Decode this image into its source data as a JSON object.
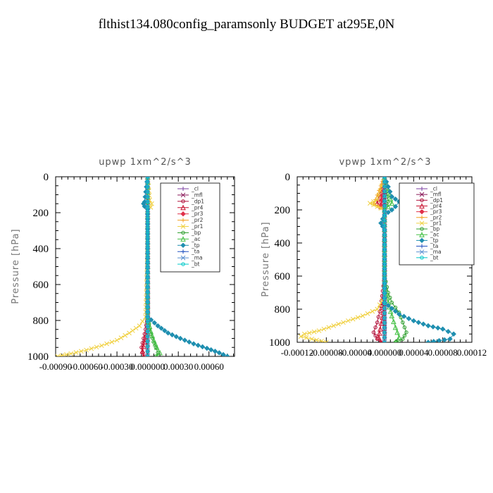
{
  "figure": {
    "title": "flthist134.080config_paramsonly  BUDGET at295E,0N"
  },
  "chart_data": [
    {
      "type": "line",
      "title": "upwp   1xm^2/s^3",
      "xlabel": "",
      "ylabel": "Pressure  [hPa]",
      "xlim": [
        -0.0009,
        0.00085
      ],
      "ylim": [
        1000,
        0
      ],
      "yticks": [
        0,
        200,
        400,
        600,
        800,
        1000
      ],
      "ytick_labels": [
        "0",
        "200",
        "400",
        "600",
        "800",
        "1000"
      ],
      "xticks": [
        -0.0009,
        -0.0006,
        -0.0003,
        0.0,
        0.0003,
        0.0006
      ],
      "xtick_labels": [
        "-0.00090",
        "-0.00060",
        "-0.00030",
        "0.000000",
        "0.00030",
        "0.00060"
      ],
      "legend_position": "top-right",
      "series": [
        {
          "name": "_cl",
          "color": "#7b3fa0",
          "x": [
            0,
            0,
            0,
            0,
            0
          ],
          "y": [
            0,
            250,
            500,
            750,
            1000
          ]
        },
        {
          "name": "_mfl",
          "color": "#8b1a5a",
          "x": [
            0,
            0,
            0,
            0,
            0
          ],
          "y": [
            0,
            250,
            500,
            750,
            1000
          ]
        },
        {
          "name": "_dp1",
          "color": "#b0103a",
          "x": [
            0,
            0,
            0,
            -2e-05,
            -4e-05,
            -6e-05,
            -5e-05,
            -3e-05
          ],
          "y": [
            0,
            500,
            780,
            850,
            900,
            950,
            980,
            1000
          ]
        },
        {
          "name": "_pr4",
          "color": "#c8102e",
          "x": [
            0,
            0,
            0,
            -1e-05,
            -3e-05,
            -5e-05,
            -4e-05
          ],
          "y": [
            0,
            500,
            800,
            860,
            920,
            970,
            1000
          ]
        },
        {
          "name": "_pr3",
          "color": "#e0304a",
          "x": [
            0,
            0,
            0,
            0
          ],
          "y": [
            0,
            500,
            800,
            1000
          ]
        },
        {
          "name": "_pr2",
          "color": "#f4a020",
          "x": [
            0,
            0,
            0,
            0
          ],
          "y": [
            0,
            500,
            800,
            1000
          ]
        },
        {
          "name": "_pr1",
          "color": "#f0d040",
          "x": [
            0,
            2e-05,
            4e-05,
            3e-05,
            0,
            0,
            -2e-05,
            -8e-05,
            -0.00018,
            -0.0003,
            -0.00045,
            -0.0006,
            -0.00075,
            -0.00088
          ],
          "y": [
            0,
            130,
            150,
            170,
            190,
            400,
            780,
            830,
            870,
            910,
            940,
            965,
            985,
            1000
          ]
        },
        {
          "name": "_bp",
          "color": "#2e9e2e",
          "x": [
            0,
            0,
            0,
            2e-05,
            5e-05,
            8e-05,
            0.0001,
            8e-05
          ],
          "y": [
            0,
            500,
            780,
            850,
            900,
            950,
            980,
            1000
          ]
        },
        {
          "name": "_ac",
          "color": "#44c044",
          "x": [
            0,
            0,
            0,
            3e-05,
            6e-05,
            9e-05,
            0.00012,
            9e-05
          ],
          "y": [
            0,
            500,
            780,
            860,
            910,
            950,
            980,
            1000
          ]
        },
        {
          "name": "_tp",
          "color": "#1f8fb0",
          "x": [
            0,
            -3e-05,
            -4e-05,
            -3e-05,
            0,
            0,
            0.0001,
            0.0002,
            0.00032,
            0.00045,
            0.00058,
            0.0007,
            0.00078
          ],
          "y": [
            0,
            140,
            150,
            165,
            180,
            780,
            830,
            870,
            900,
            930,
            955,
            980,
            1000
          ]
        },
        {
          "name": "_ta",
          "color": "#2050c0",
          "x": [
            0,
            0,
            0
          ],
          "y": [
            0,
            500,
            1000
          ]
        },
        {
          "name": "_ma",
          "color": "#5a8fd0",
          "x": [
            0,
            0,
            0
          ],
          "y": [
            0,
            500,
            1000
          ]
        },
        {
          "name": "_bt",
          "color": "#00c8c8",
          "x": [
            0,
            0,
            0
          ],
          "y": [
            0,
            500,
            1000
          ]
        }
      ]
    },
    {
      "type": "line",
      "title": "vpwp   1xm^2/s^3",
      "xlabel": "",
      "ylabel": "Pressure  [hPa]",
      "xlim": [
        -0.00012,
        0.00012
      ],
      "ylim": [
        1000,
        0
      ],
      "yticks": [
        0,
        200,
        400,
        600,
        800,
        1000
      ],
      "ytick_labels": [
        "0",
        "200",
        "400",
        "600",
        "800",
        "1000"
      ],
      "xticks": [
        -0.00012,
        -8e-05,
        -4e-05,
        0.0,
        4e-05,
        8e-05,
        0.00012
      ],
      "xtick_labels": [
        "-0.00012",
        "-0.00008",
        "-0.00004",
        "0.000000",
        "0.00004",
        "0.00008",
        "0.00012"
      ],
      "legend_position": "top-right",
      "series": [
        {
          "name": "_cl",
          "color": "#7b3fa0",
          "x": [
            0,
            0,
            0,
            0,
            0
          ],
          "y": [
            0,
            250,
            500,
            750,
            1000
          ]
        },
        {
          "name": "_mfl",
          "color": "#8b1a5a",
          "x": [
            0,
            0,
            0,
            0,
            0
          ],
          "y": [
            0,
            250,
            500,
            750,
            1000
          ]
        },
        {
          "name": "_dp1",
          "color": "#b0103a",
          "x": [
            0,
            -5e-06,
            0,
            0,
            -5e-06,
            -1e-05,
            -1.5e-05,
            -1e-05,
            -5e-06
          ],
          "y": [
            0,
            150,
            200,
            600,
            780,
            880,
            940,
            980,
            1000
          ]
        },
        {
          "name": "_pr4",
          "color": "#c8102e",
          "x": [
            0,
            -1e-05,
            0,
            0,
            -3e-06,
            -6e-06,
            -8e-06,
            -5e-06
          ],
          "y": [
            0,
            160,
            200,
            700,
            850,
            920,
            970,
            1000
          ]
        },
        {
          "name": "_pr3",
          "color": "#e0304a",
          "x": [
            0,
            -5e-06,
            0,
            0
          ],
          "y": [
            0,
            170,
            200,
            1000
          ]
        },
        {
          "name": "_pr2",
          "color": "#f4a020",
          "x": [
            0,
            -1.5e-05,
            0,
            0
          ],
          "y": [
            0,
            165,
            200,
            1000
          ]
        },
        {
          "name": "_pr1",
          "color": "#f0d040",
          "x": [
            0,
            -1e-05,
            -2e-05,
            -1e-05,
            0,
            0,
            -1e-05,
            -3e-05,
            -5e-05,
            -7e-05,
            -9e-05,
            -0.00011,
            -0.000115,
            -0.0001,
            -8e-05
          ],
          "y": [
            0,
            140,
            160,
            180,
            200,
            720,
            800,
            840,
            870,
            900,
            930,
            950,
            965,
            980,
            1000
          ]
        },
        {
          "name": "_bp",
          "color": "#2e9e2e",
          "x": [
            0,
            5e-06,
            0,
            0,
            5e-06,
            1e-05,
            2e-05,
            2.5e-05,
            3e-05,
            2.5e-05,
            1.5e-05
          ],
          "y": [
            0,
            150,
            200,
            600,
            700,
            760,
            820,
            880,
            940,
            980,
            1000
          ]
        },
        {
          "name": "_ac",
          "color": "#44c044",
          "x": [
            0,
            1e-05,
            0,
            0,
            5e-06,
            1e-05,
            1.5e-05,
            2e-05,
            1.5e-05
          ],
          "y": [
            0,
            160,
            200,
            650,
            760,
            840,
            910,
            970,
            1000
          ]
        },
        {
          "name": "_tp",
          "color": "#1f8fb0",
          "x": [
            0,
            1e-05,
            2e-05,
            1.5e-05,
            1e-05,
            0,
            -5e-06,
            0,
            0,
            2e-05,
            4e-05,
            6e-05,
            8e-05,
            9.5e-05,
            9e-05,
            6e-05
          ],
          "y": [
            0,
            120,
            150,
            180,
            200,
            230,
            280,
            320,
            760,
            830,
            870,
            900,
            920,
            950,
            980,
            1000
          ]
        },
        {
          "name": "_ta",
          "color": "#2050c0",
          "x": [
            0,
            0,
            0
          ],
          "y": [
            0,
            500,
            1000
          ]
        },
        {
          "name": "_ma",
          "color": "#5a8fd0",
          "x": [
            0,
            0,
            0
          ],
          "y": [
            0,
            500,
            1000
          ]
        },
        {
          "name": "_bt",
          "color": "#00c8c8",
          "x": [
            0,
            0,
            0
          ],
          "y": [
            0,
            500,
            1000
          ]
        }
      ]
    }
  ]
}
